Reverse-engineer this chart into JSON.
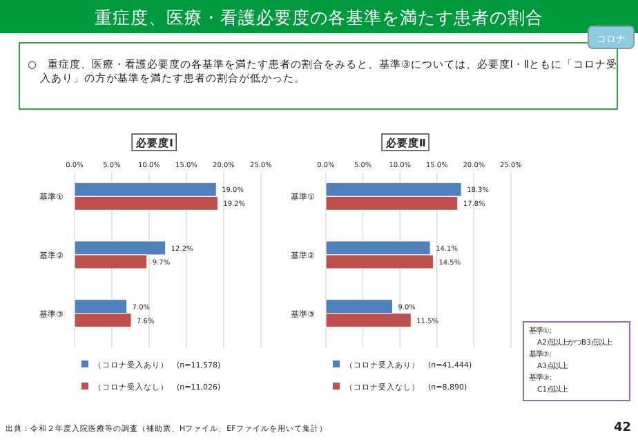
{
  "chart_data": [
    {
      "type": "bar",
      "orientation": "horizontal",
      "title": "必要度Ⅰ",
      "categories": [
        "基準①",
        "基準②",
        "基準③"
      ],
      "series": [
        {
          "name": "（コロナ受入あり）　(n=11,578)",
          "color": "#4f81bd",
          "values": [
            19.0,
            12.2,
            7.0
          ],
          "value_labels": [
            "19.0%",
            "12.2%",
            "7.0%"
          ]
        },
        {
          "name": "（コロナ受入なし）　(n=11,026)",
          "color": "#c0504d",
          "values": [
            19.2,
            9.7,
            7.6
          ],
          "value_labels": [
            "19.2%",
            "9.7%",
            "7.6%"
          ]
        }
      ],
      "xlim": [
        0,
        25
      ],
      "xticks": [
        {
          "value": 0,
          "label": "0.0%"
        },
        {
          "value": 5,
          "label": "5.0%"
        },
        {
          "value": 10,
          "label": "10.0%"
        },
        {
          "value": 15,
          "label": "15.0%"
        },
        {
          "value": 20,
          "label": "20.0%"
        },
        {
          "value": 25,
          "label": "25.0%"
        }
      ],
      "grid": "x",
      "legend": "bottom",
      "annotations": [
        "重症度、医療・看護必要度の各基準を満たす患者の割合",
        "コロナ",
        "○　重症度、医療・看護必要度の各基準を満たす患者の割合をみると、基準③については、必要度Ⅰ・Ⅱともに「コロナ受入あり」の方が基準を満たす患者の割合が低かった。",
        "出典：令和２年度入院医療等の調査（補助票、Hファイル、EFファイルを用いて集計）",
        "42"
      ]
    },
    {
      "type": "bar",
      "orientation": "horizontal",
      "title": "必要度Ⅱ",
      "categories": [
        "基準①",
        "基準②",
        "基準③"
      ],
      "series": [
        {
          "name": "（コロナ受入あり）　(n=41,444)",
          "color": "#4f81bd",
          "values": [
            18.3,
            14.1,
            9.0
          ],
          "value_labels": [
            "18.3%",
            "14.1%",
            "9.0%"
          ]
        },
        {
          "name": "（コロナ受入なし）　(n=8,890)",
          "color": "#c0504d",
          "values": [
            17.8,
            14.5,
            11.5
          ],
          "value_labels": [
            "17.8%",
            "14.5%",
            "11.5%"
          ]
        }
      ],
      "xlim": [
        0,
        25
      ],
      "xticks": [
        {
          "value": 0,
          "label": "0.0%"
        },
        {
          "value": 5,
          "label": "5.0%"
        },
        {
          "value": 10,
          "label": "10.0%"
        },
        {
          "value": 15,
          "label": "15.0%"
        },
        {
          "value": 20,
          "label": "20.0%"
        },
        {
          "value": 25,
          "label": "25.0%"
        }
      ],
      "grid": "x",
      "legend": "bottom",
      "annotations": [
        "基準①:",
        "A2点以上かつB3点以上",
        "基準②:",
        "A3点以上",
        "基準③:",
        "C1点以上"
      ]
    }
  ]
}
